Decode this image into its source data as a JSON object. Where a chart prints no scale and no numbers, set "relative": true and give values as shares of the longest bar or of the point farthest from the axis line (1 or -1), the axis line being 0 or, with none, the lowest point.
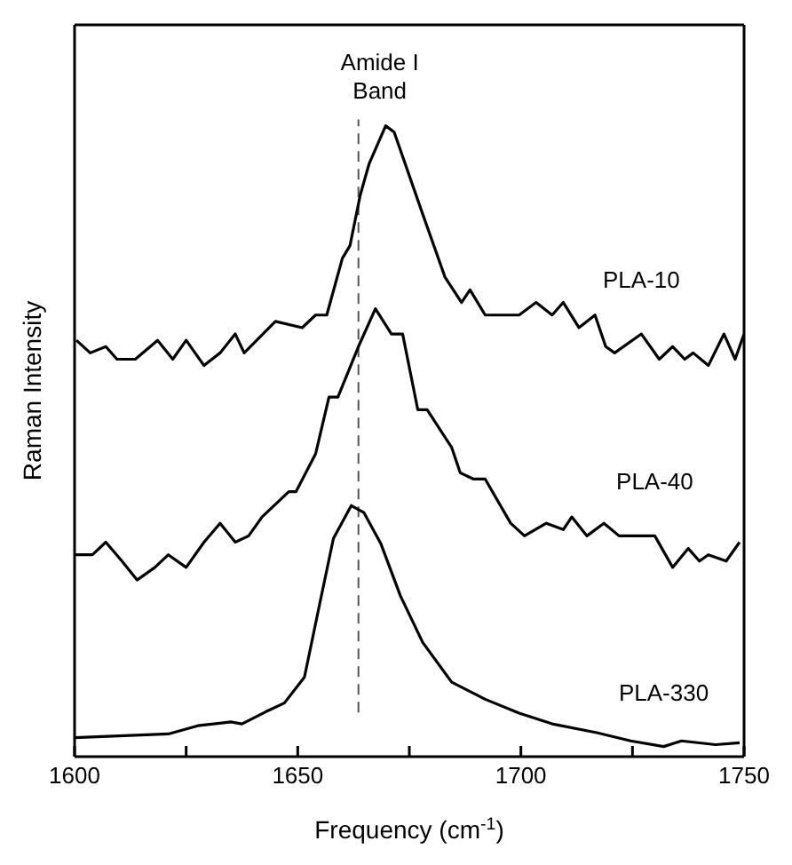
{
  "chart_data": {
    "type": "line",
    "relative": true,
    "xlabel": "Frequency (cm$^{-1}$)",
    "ylabel": "Raman Intensity",
    "xlim": [
      1600,
      1750
    ],
    "xticks": [
      1600,
      {
        "value": 1625,
        "label": null
      },
      1650,
      {
        "value": 1675,
        "label": null
      },
      1700,
      {
        "value": 1725,
        "label": null
      },
      1750
    ],
    "marker": "none",
    "line_style": "solid",
    "ref_lines": [
      {
        "axis": "x",
        "value": 1663.6,
        "label": "Amide I Band",
        "line_style": "dashed",
        "color": "#555555"
      }
    ],
    "series": [
      {
        "name": "PLA-10",
        "color": "#000000",
        "x": [
          1600.4,
          1603.5,
          1607,
          1609.5,
          1613.6,
          1618.6,
          1622,
          1625,
          1629,
          1632.6,
          1636,
          1638,
          1645,
          1651,
          1654,
          1656.5,
          1660,
          1661.7,
          1664,
          1666,
          1669.7,
          1671.6,
          1678,
          1683,
          1686.7,
          1688.6,
          1692,
          1694,
          1699.6,
          1703.4,
          1707,
          1709.5,
          1713,
          1716.6,
          1719,
          1721,
          1727,
          1731,
          1734,
          1736.7,
          1738.6,
          1742,
          1745.5,
          1748,
          1750
        ],
        "values": [
          0.66,
          0.64,
          0.65,
          0.63,
          0.63,
          0.66,
          0.63,
          0.66,
          0.62,
          0.64,
          0.67,
          0.64,
          0.69,
          0.68,
          0.7,
          0.7,
          0.79,
          0.81,
          0.89,
          0.94,
          1,
          0.99,
          0.86,
          0.76,
          0.72,
          0.74,
          0.7,
          0.7,
          0.7,
          0.72,
          0.7,
          0.72,
          0.68,
          0.7,
          0.65,
          0.64,
          0.67,
          0.63,
          0.65,
          0.63,
          0.64,
          0.62,
          0.67,
          0.63,
          0.67
        ]
      },
      {
        "name": "PLA-40",
        "color": "#000000",
        "x": [
          1600,
          1604,
          1607,
          1610.6,
          1614,
          1618,
          1621,
          1625,
          1629,
          1632.6,
          1636,
          1639,
          1642,
          1645,
          1648,
          1649.6,
          1654,
          1657,
          1659,
          1663.6,
          1667.4,
          1671,
          1673.5,
          1676.9,
          1679,
          1684.5,
          1686.4,
          1689.4,
          1692,
          1697.7,
          1700.8,
          1705.7,
          1709.5,
          1711.4,
          1714.8,
          1718.6,
          1722,
          1730,
          1734,
          1737.5,
          1740,
          1742,
          1746,
          1749
        ],
        "values": [
          0.32,
          0.32,
          0.34,
          0.31,
          0.28,
          0.3,
          0.32,
          0.3,
          0.34,
          0.37,
          0.34,
          0.35,
          0.38,
          0.4,
          0.42,
          0.42,
          0.48,
          0.57,
          0.57,
          0.65,
          0.71,
          0.67,
          0.67,
          0.55,
          0.55,
          0.49,
          0.45,
          0.44,
          0.44,
          0.37,
          0.35,
          0.37,
          0.36,
          0.38,
          0.35,
          0.37,
          0.35,
          0.35,
          0.3,
          0.33,
          0.31,
          0.32,
          0.31,
          0.34
        ]
      },
      {
        "name": "PLA-330",
        "color": "#000000",
        "x": [
          1600,
          1621,
          1627.6,
          1635,
          1637.5,
          1642.8,
          1647,
          1651.5,
          1655,
          1658,
          1662,
          1664.8,
          1668.6,
          1673,
          1678,
          1684.5,
          1692,
          1699.6,
          1707,
          1717,
          1724.6,
          1732,
          1736,
          1743.6,
          1749
        ],
        "values": [
          0.03,
          0.036,
          0.049,
          0.055,
          0.052,
          0.071,
          0.085,
          0.126,
          0.245,
          0.346,
          0.398,
          0.387,
          0.338,
          0.255,
          0.181,
          0.118,
          0.091,
          0.069,
          0.052,
          0.038,
          0.025,
          0.016,
          0.025,
          0.019,
          0.022
        ]
      }
    ]
  }
}
